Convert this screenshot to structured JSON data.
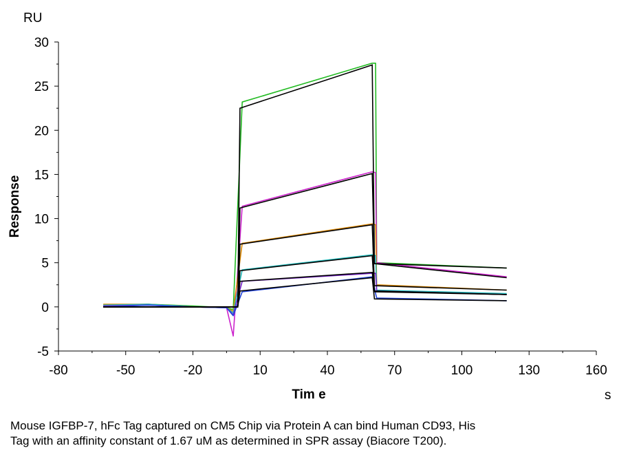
{
  "chart_data": {
    "type": "line",
    "xlabel": "Tim e",
    "ylabel": "Response",
    "x_unit": "s",
    "y_unit": "RU",
    "xlim": [
      -80,
      160
    ],
    "ylim": [
      -5,
      30
    ],
    "x_ticks": [
      -80,
      -50,
      -20,
      10,
      40,
      70,
      100,
      130,
      160
    ],
    "y_ticks": [
      -5,
      0,
      5,
      10,
      15,
      20,
      25,
      30
    ],
    "grid": false,
    "legend": "none",
    "colors": {
      "fit": "#000000",
      "measured": [
        "#22bb22",
        "#cc22cc",
        "#dd8800",
        "#22bbbb",
        "#7722cc",
        "#2244dd"
      ]
    },
    "series": [
      {
        "x": [
          -60,
          -40,
          -20,
          -5,
          -2,
          2,
          60,
          61.5,
          62,
          120
        ],
        "y": [
          0.2,
          0.3,
          0.1,
          -0.1,
          -0.3,
          23.2,
          27.6,
          27.6,
          5.0,
          4.4
        ]
      },
      {
        "x": [
          -60,
          -40,
          -20,
          -5,
          -2,
          2,
          60,
          61.5,
          62,
          120
        ],
        "y": [
          0.1,
          0.3,
          0.0,
          -0.1,
          -3.3,
          11.4,
          15.3,
          15.2,
          5.0,
          3.4
        ]
      },
      {
        "x": [
          -60,
          -40,
          -20,
          -5,
          -2,
          2,
          60,
          61.5,
          62,
          120
        ],
        "y": [
          0.3,
          0.3,
          0.0,
          -0.1,
          -0.5,
          7.2,
          9.4,
          9.3,
          2.5,
          1.9
        ]
      },
      {
        "x": [
          -60,
          -40,
          -20,
          -5,
          -2,
          2,
          60,
          61.5,
          62,
          120
        ],
        "y": [
          0.2,
          0.3,
          0.0,
          -0.1,
          -0.7,
          4.2,
          5.9,
          5.8,
          1.9,
          1.5
        ]
      },
      {
        "x": [
          -60,
          -40,
          -20,
          -5,
          -2,
          2,
          60,
          61.5,
          62,
          120
        ],
        "y": [
          0.1,
          0.2,
          0.0,
          -0.1,
          -0.9,
          2.9,
          3.8,
          3.8,
          1.8,
          1.4
        ]
      },
      {
        "x": [
          -60,
          -40,
          -20,
          -5,
          -2,
          2,
          60,
          61.5,
          62,
          120
        ],
        "y": [
          0.0,
          0.2,
          0.0,
          -0.1,
          -1.0,
          1.7,
          3.4,
          1.5,
          1.0,
          0.7
        ]
      }
    ],
    "fits": [
      {
        "x": [
          -60,
          0,
          1,
          60,
          61,
          120
        ],
        "y": [
          0,
          0,
          22.5,
          27.4,
          4.9,
          4.4
        ]
      },
      {
        "x": [
          -60,
          0,
          1,
          60,
          61,
          120
        ],
        "y": [
          0,
          0,
          11.2,
          15.1,
          4.9,
          3.3
        ]
      },
      {
        "x": [
          -60,
          0,
          1,
          60,
          61,
          120
        ],
        "y": [
          0,
          0,
          7.1,
          9.3,
          2.4,
          1.9
        ]
      },
      {
        "x": [
          -60,
          0,
          1,
          60,
          61,
          120
        ],
        "y": [
          0,
          0,
          4.1,
          5.8,
          1.8,
          1.4
        ]
      },
      {
        "x": [
          -60,
          0,
          1,
          60,
          61,
          120
        ],
        "y": [
          0,
          0,
          2.9,
          3.9,
          1.7,
          1.4
        ]
      },
      {
        "x": [
          -60,
          0,
          1,
          60,
          61,
          120
        ],
        "y": [
          0,
          0,
          1.8,
          3.3,
          0.9,
          0.7
        ]
      }
    ]
  },
  "caption": {
    "line1": "Mouse IGFBP-7, hFc Tag captured on CM5 Chip via Protein A can bind Human CD93, His",
    "line2": "Tag with an affinity constant of 1.67 uM as determined in SPR assay (Biacore T200)."
  }
}
